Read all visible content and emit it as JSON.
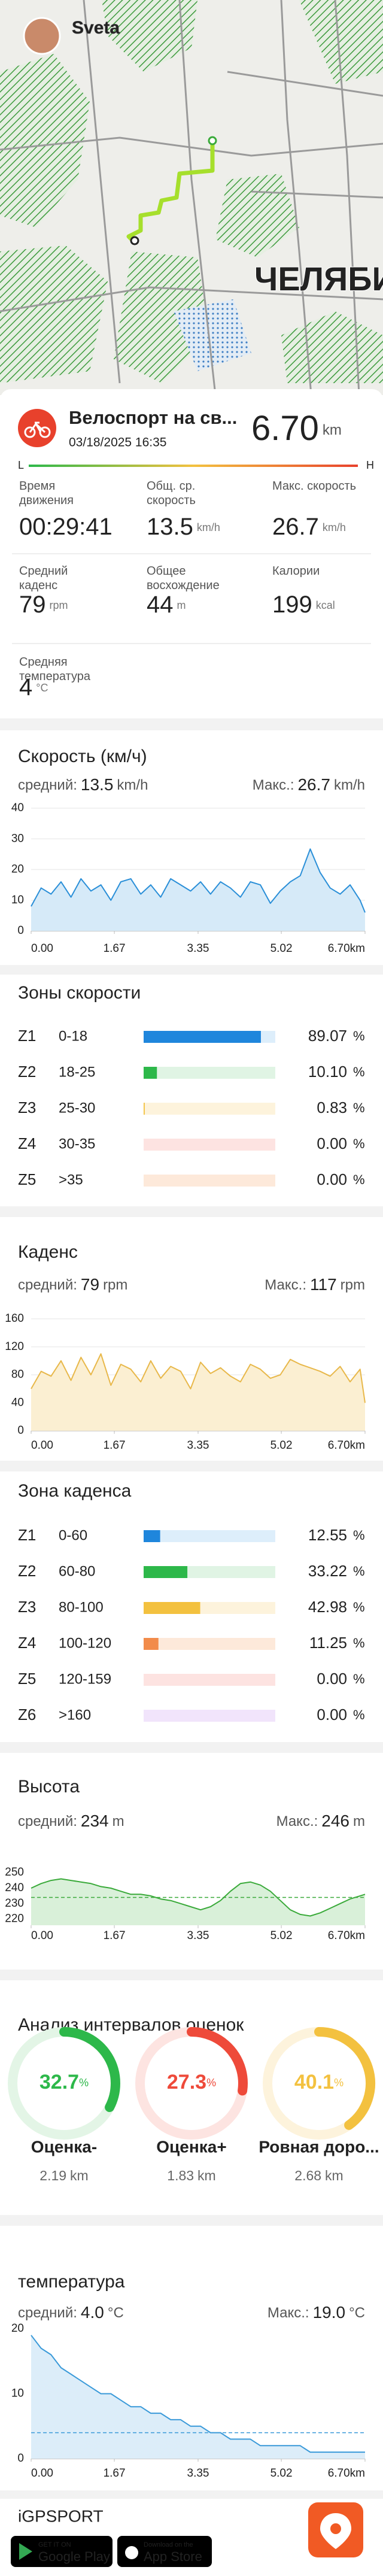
{
  "map": {
    "user": "Sveta",
    "city_label": "ЧЕЛЯБИ"
  },
  "activity": {
    "title": "Велоспорт на св...",
    "date": "03/18/2025 16:35",
    "distance": "6.70",
    "distance_unit": "km",
    "scale_low": "L",
    "scale_high": "H"
  },
  "stats": [
    {
      "label": "Время движения",
      "value": "00:29:41",
      "unit": ""
    },
    {
      "label": "Общ. ср. скорость",
      "value": "13.5",
      "unit": "km/h"
    },
    {
      "label": "Макс. скорость",
      "value": "26.7",
      "unit": "km/h"
    },
    {
      "label": "Средний каденс",
      "value": "79",
      "unit": "rpm"
    },
    {
      "label": "Общее восхождение",
      "value": "44",
      "unit": "m"
    },
    {
      "label": "Калории",
      "value": "199",
      "unit": "kcal"
    },
    {
      "label": "Средняя температура",
      "value": "4",
      "unit": "°C"
    }
  ],
  "chart_data": [
    {
      "type": "line",
      "title": "Скорость (км/ч)",
      "avg_text": "средний:",
      "avg": 13.5,
      "max_text": "Макс.:",
      "max": 26.7,
      "unit": "km/h",
      "color": "#2a8fd8",
      "fill_color": "#d6eaf8",
      "grid": true,
      "x": [
        0,
        0.2,
        0.4,
        0.6,
        0.8,
        1,
        1.2,
        1.4,
        1.6,
        1.8,
        2,
        2.2,
        2.4,
        2.6,
        2.8,
        3,
        3.2,
        3.4,
        3.6,
        3.8,
        4,
        4.2,
        4.4,
        4.6,
        4.8,
        5,
        5.2,
        5.4,
        5.6,
        5.8,
        6,
        6.2,
        6.4,
        6.6,
        6.7
      ],
      "values": [
        8,
        14,
        12,
        16,
        11,
        17,
        13,
        15,
        10,
        16,
        17,
        12,
        15,
        11,
        17,
        15,
        13,
        16,
        12,
        16,
        14,
        11,
        16,
        15,
        9,
        13,
        16,
        18,
        26.7,
        19,
        14,
        12,
        15,
        10,
        6
      ],
      "xlim": [
        0,
        6.7
      ],
      "xticks": [
        {
          "value": 0,
          "label": "0.00"
        },
        1.67,
        3.35,
        5.02,
        {
          "value": 6.7,
          "label": "6.70km"
        }
      ],
      "ylim": [
        0,
        40
      ],
      "yticks": [
        0,
        10,
        20,
        30,
        40
      ]
    },
    {
      "type": "zones",
      "title": "Зоны скорости",
      "unit": "%",
      "categories": [
        "Z1",
        "Z2",
        "Z3",
        "Z4",
        "Z5"
      ],
      "ranges": [
        "0-18",
        "18-25",
        "25-30",
        "30-35",
        ">35"
      ],
      "values": [
        89.07,
        10.1,
        0.83,
        0,
        0
      ],
      "value_labels": [
        "89.07",
        "10.10",
        "0.83",
        "0.00",
        "0.00"
      ],
      "colors": [
        "#1f86dc",
        "#2db84a",
        "#f3c13f",
        "#f28b82",
        "#f39c4a"
      ],
      "track_colors": [
        "#ddeefb",
        "#e0f4e4",
        "#fdf3dc",
        "#fde3e1",
        "#fde9da"
      ],
      "xlim": [
        0,
        100
      ]
    },
    {
      "type": "line",
      "title": "Каденс",
      "avg_text": "средний:",
      "avg": 79,
      "max_text": "Макс.:",
      "max": 117,
      "unit": "rpm",
      "color": "#e8b84a",
      "fill_color": "#fbefd2",
      "grid": true,
      "x": [
        0,
        0.2,
        0.4,
        0.6,
        0.8,
        1,
        1.2,
        1.4,
        1.6,
        1.8,
        2,
        2.2,
        2.4,
        2.6,
        2.8,
        3,
        3.2,
        3.4,
        3.6,
        3.8,
        4,
        4.2,
        4.4,
        4.6,
        4.8,
        5,
        5.2,
        5.4,
        5.6,
        5.8,
        6,
        6.2,
        6.4,
        6.6,
        6.7
      ],
      "values": [
        60,
        85,
        78,
        100,
        72,
        105,
        80,
        110,
        65,
        95,
        88,
        70,
        100,
        75,
        92,
        85,
        60,
        98,
        82,
        90,
        78,
        70,
        95,
        88,
        75,
        80,
        102,
        95,
        90,
        85,
        78,
        92,
        70,
        88,
        40
      ],
      "xlim": [
        0,
        6.7
      ],
      "xticks": [
        {
          "value": 0,
          "label": "0.00"
        },
        1.67,
        3.35,
        5.02,
        {
          "value": 6.7,
          "label": "6.70km"
        }
      ],
      "ylim": [
        0,
        160
      ],
      "yticks": [
        0,
        40,
        80,
        120,
        160
      ]
    },
    {
      "type": "zones",
      "title": "Зона каденса",
      "unit": "%",
      "categories": [
        "Z1",
        "Z2",
        "Z3",
        "Z4",
        "Z5",
        "Z6"
      ],
      "ranges": [
        "0-60",
        "60-80",
        "80-100",
        "100-120",
        "120-159",
        ">160"
      ],
      "values": [
        12.55,
        33.22,
        42.98,
        11.25,
        0,
        0
      ],
      "value_labels": [
        "12.55",
        "33.22",
        "42.98",
        "11.25",
        "0.00",
        "0.00"
      ],
      "colors": [
        "#1f86dc",
        "#2db84a",
        "#f3c13f",
        "#f28b4a",
        "#f28b82",
        "#c99be8"
      ],
      "track_colors": [
        "#ddeefb",
        "#e0f4e4",
        "#fdf3dc",
        "#fde9da",
        "#fde3e1",
        "#f1e4fb"
      ],
      "xlim": [
        0,
        100
      ]
    },
    {
      "type": "line",
      "title": "Высота",
      "avg_text": "средний:",
      "avg": 234,
      "max_text": "Макс.:",
      "max": 246,
      "unit": "m",
      "color": "#3aaa3a",
      "fill_color": "#d9f0d9",
      "grid": false,
      "avg_line": true,
      "x": [
        0,
        0.2,
        0.4,
        0.6,
        0.8,
        1,
        1.2,
        1.4,
        1.6,
        1.8,
        2,
        2.2,
        2.4,
        2.6,
        2.8,
        3,
        3.2,
        3.4,
        3.6,
        3.8,
        4,
        4.2,
        4.4,
        4.6,
        4.8,
        5,
        5.2,
        5.4,
        5.6,
        5.8,
        6,
        6.2,
        6.4,
        6.6,
        6.7
      ],
      "values": [
        240,
        243,
        245,
        246,
        245,
        244,
        243,
        241,
        240,
        238,
        236,
        236,
        235,
        233,
        232,
        230,
        228,
        226,
        228,
        232,
        238,
        243,
        244,
        242,
        238,
        232,
        226,
        223,
        222,
        224,
        227,
        230,
        233,
        235,
        236
      ],
      "xlim": [
        0,
        6.7
      ],
      "xticks": [
        {
          "value": 0,
          "label": "0.00"
        },
        1.67,
        3.35,
        5.02,
        {
          "value": 6.7,
          "label": "6.70km"
        }
      ],
      "ylim": [
        216,
        252
      ],
      "yticks": [
        220,
        230,
        240,
        250
      ]
    },
    {
      "type": "rings",
      "title": "Анализ интервалов оценок",
      "unit": "%",
      "categories": [
        "Оценка-",
        "Оценка+",
        "Ровная доро..."
      ],
      "values": [
        32.7,
        27.3,
        40.1
      ],
      "distances": [
        2.19,
        1.83,
        2.68
      ],
      "distance_unit": "km",
      "colors": [
        "#2db84a",
        "#ee4a3a",
        "#f3c13f"
      ],
      "track_colors": [
        "#e3f5e6",
        "#fde4e1",
        "#fdf3dc"
      ]
    },
    {
      "type": "line",
      "title": "температура",
      "avg_text": "средний:",
      "avg": 4,
      "avg_value_label": "4.0",
      "max_text": "Макс.:",
      "max": 19,
      "max_value_label": "19.0",
      "unit": "°C",
      "color": "#3a9ad9",
      "fill_color": "#dcedf9",
      "grid": false,
      "avg_line": true,
      "x": [
        0,
        0.2,
        0.4,
        0.6,
        0.8,
        1,
        1.2,
        1.4,
        1.6,
        1.8,
        2,
        2.2,
        2.4,
        2.6,
        2.8,
        3,
        3.2,
        3.4,
        3.6,
        3.8,
        4,
        4.2,
        4.4,
        4.6,
        4.8,
        5,
        5.2,
        5.4,
        5.6,
        5.8,
        6,
        6.2,
        6.4,
        6.6,
        6.7
      ],
      "values": [
        19,
        17,
        16,
        14,
        13,
        12,
        11,
        10,
        10,
        9,
        8,
        8,
        7,
        7,
        6,
        6,
        5,
        5,
        4,
        4,
        3,
        3,
        3,
        2,
        2,
        2,
        2,
        2,
        1,
        1,
        1,
        1,
        1,
        1,
        1
      ],
      "xlim": [
        0,
        6.7
      ],
      "xticks": [
        {
          "value": 0,
          "label": "0.00"
        },
        1.67,
        3.35,
        5.02,
        {
          "value": 6.7,
          "label": "6.70km"
        }
      ],
      "ylim": [
        0,
        20
      ],
      "yticks": [
        0,
        10,
        20
      ]
    }
  ],
  "footer": {
    "brand": "iGPSPORT",
    "google_small": "GET IT ON",
    "google": "Google Play",
    "apple_small": "Download on the",
    "apple": "App Store"
  }
}
